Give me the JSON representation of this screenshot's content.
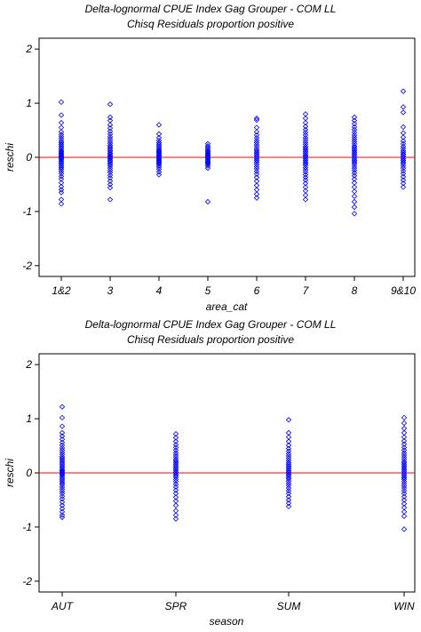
{
  "colors": {
    "points": "#0000ff",
    "reference": "#ff0000",
    "axes": "#000000"
  },
  "chart_data": [
    {
      "type": "scatter",
      "marker": "diamond-open",
      "title": "Delta-lognormal CPUE Index Gag Grouper - COM LL",
      "subtitle": "Chisq Residuals proportion positive",
      "xlabel": "area_cat",
      "ylabel": "reschi",
      "categories": [
        "1&2",
        "3",
        "4",
        "5",
        "6",
        "7",
        "8",
        "9&10"
      ],
      "y_ticks": [
        "2",
        "1",
        "0",
        "-1",
        "-2"
      ],
      "ylim": [
        -2.2,
        2.2
      ],
      "reference_y": 0,
      "series": [
        {
          "category": "1&2",
          "values": [
            1.02,
            0.78,
            0.64,
            0.55,
            0.47,
            0.42,
            0.38,
            0.34,
            0.3,
            0.27,
            0.24,
            0.21,
            0.18,
            0.15,
            0.12,
            0.1,
            0.08,
            0.06,
            0.04,
            0.02,
            0.01,
            -0.01,
            -0.03,
            -0.05,
            -0.08,
            -0.1,
            -0.13,
            -0.16,
            -0.19,
            -0.22,
            -0.26,
            -0.3,
            -0.35,
            -0.4,
            -0.47,
            -0.54,
            -0.6,
            -0.65,
            -0.78,
            -0.86
          ]
        },
        {
          "category": "3",
          "values": [
            0.98,
            0.74,
            0.68,
            0.6,
            0.54,
            0.48,
            0.43,
            0.38,
            0.34,
            0.3,
            0.26,
            0.22,
            0.19,
            0.16,
            0.13,
            0.1,
            0.07,
            0.05,
            0.02,
            0.0,
            -0.02,
            -0.05,
            -0.07,
            -0.1,
            -0.13,
            -0.16,
            -0.2,
            -0.24,
            -0.28,
            -0.33,
            -0.38,
            -0.44,
            -0.5,
            -0.56,
            -0.78
          ]
        },
        {
          "category": "4",
          "values": [
            0.6,
            0.43,
            0.36,
            0.31,
            0.27,
            0.24,
            0.21,
            0.18,
            0.15,
            0.13,
            0.11,
            0.09,
            0.07,
            0.05,
            0.03,
            0.02,
            0.0,
            -0.02,
            -0.04,
            -0.06,
            -0.08,
            -0.1,
            -0.12,
            -0.15,
            -0.18,
            -0.22,
            -0.27,
            -0.32
          ]
        },
        {
          "category": "5",
          "values": [
            0.25,
            0.21,
            0.18,
            0.15,
            0.12,
            0.1,
            0.08,
            0.06,
            0.04,
            0.02,
            0.01,
            -0.01,
            -0.03,
            -0.05,
            -0.07,
            -0.09,
            -0.11,
            -0.13,
            -0.16,
            -0.2,
            -0.82
          ]
        },
        {
          "category": "6",
          "values": [
            0.72,
            0.69,
            0.55,
            0.47,
            0.41,
            0.36,
            0.31,
            0.27,
            0.23,
            0.19,
            0.15,
            0.12,
            0.09,
            0.06,
            0.03,
            0.0,
            -0.03,
            -0.06,
            -0.09,
            -0.13,
            -0.17,
            -0.21,
            -0.26,
            -0.31,
            -0.37,
            -0.44,
            -0.52,
            -0.6,
            -0.68,
            -0.75
          ]
        },
        {
          "category": "7",
          "values": [
            0.8,
            0.72,
            0.64,
            0.57,
            0.51,
            0.46,
            0.41,
            0.36,
            0.32,
            0.28,
            0.24,
            0.2,
            0.17,
            0.14,
            0.11,
            0.08,
            0.05,
            0.02,
            0.0,
            -0.03,
            -0.06,
            -0.09,
            -0.12,
            -0.15,
            -0.19,
            -0.23,
            -0.27,
            -0.32,
            -0.37,
            -0.42,
            -0.48,
            -0.55,
            -0.62,
            -0.7,
            -0.78
          ]
        },
        {
          "category": "8",
          "values": [
            0.74,
            0.68,
            0.62,
            0.56,
            0.51,
            0.46,
            0.41,
            0.37,
            0.33,
            0.29,
            0.25,
            0.21,
            0.18,
            0.15,
            0.12,
            0.09,
            0.06,
            0.03,
            0.0,
            -0.03,
            -0.06,
            -0.09,
            -0.12,
            -0.16,
            -0.2,
            -0.24,
            -0.29,
            -0.34,
            -0.4,
            -0.47,
            -0.55,
            -0.63,
            -0.72,
            -0.82,
            -0.92,
            -1.04
          ]
        },
        {
          "category": "9&10",
          "values": [
            1.22,
            0.93,
            0.83,
            0.56,
            0.45,
            0.37,
            0.3,
            0.25,
            0.2,
            0.16,
            0.12,
            0.09,
            0.06,
            0.03,
            0.0,
            -0.03,
            -0.06,
            -0.09,
            -0.12,
            -0.16,
            -0.2,
            -0.25,
            -0.3,
            -0.36,
            -0.42,
            -0.48,
            -0.55
          ]
        }
      ]
    },
    {
      "type": "scatter",
      "marker": "diamond-open",
      "title": "Delta-lognormal CPUE Index Gag Grouper - COM LL",
      "subtitle": "Chisq Residuals proportion positive",
      "xlabel": "season",
      "ylabel": "reschi",
      "categories": [
        "AUT",
        "SPR",
        "SUM",
        "WIN"
      ],
      "y_ticks": [
        "2",
        "1",
        "0",
        "-1",
        "-2"
      ],
      "ylim": [
        -2.2,
        2.2
      ],
      "reference_y": 0,
      "series": [
        {
          "category": "AUT",
          "values": [
            1.22,
            1.02,
            0.86,
            0.74,
            0.68,
            0.62,
            0.56,
            0.51,
            0.46,
            0.42,
            0.38,
            0.34,
            0.3,
            0.27,
            0.24,
            0.21,
            0.18,
            0.15,
            0.12,
            0.09,
            0.06,
            0.04,
            0.02,
            0.0,
            -0.02,
            -0.04,
            -0.07,
            -0.1,
            -0.13,
            -0.16,
            -0.19,
            -0.22,
            -0.26,
            -0.3,
            -0.34,
            -0.38,
            -0.43,
            -0.48,
            -0.54,
            -0.6,
            -0.66,
            -0.72,
            -0.78,
            -0.82
          ]
        },
        {
          "category": "SPR",
          "values": [
            0.72,
            0.65,
            0.58,
            0.52,
            0.47,
            0.42,
            0.37,
            0.33,
            0.29,
            0.25,
            0.22,
            0.19,
            0.16,
            0.13,
            0.1,
            0.07,
            0.04,
            0.01,
            -0.02,
            -0.05,
            -0.08,
            -0.12,
            -0.16,
            -0.21,
            -0.26,
            -0.32,
            -0.38,
            -0.45,
            -0.52,
            -0.6,
            -0.7,
            -0.78,
            -0.85
          ]
        },
        {
          "category": "SUM",
          "values": [
            0.98,
            0.74,
            0.66,
            0.58,
            0.51,
            0.45,
            0.4,
            0.35,
            0.31,
            0.27,
            0.23,
            0.19,
            0.16,
            0.13,
            0.1,
            0.07,
            0.04,
            0.01,
            -0.02,
            -0.05,
            -0.08,
            -0.11,
            -0.15,
            -0.19,
            -0.23,
            -0.28,
            -0.33,
            -0.38,
            -0.44,
            -0.5,
            -0.56,
            -0.62
          ]
        },
        {
          "category": "WIN",
          "values": [
            1.02,
            0.92,
            0.82,
            0.74,
            0.66,
            0.59,
            0.53,
            0.47,
            0.42,
            0.37,
            0.33,
            0.29,
            0.25,
            0.21,
            0.18,
            0.15,
            0.12,
            0.09,
            0.06,
            0.03,
            0.0,
            -0.03,
            -0.06,
            -0.09,
            -0.12,
            -0.16,
            -0.2,
            -0.24,
            -0.28,
            -0.33,
            -0.38,
            -0.44,
            -0.5,
            -0.57,
            -0.64,
            -0.72,
            -0.8,
            -1.04
          ]
        }
      ]
    }
  ]
}
